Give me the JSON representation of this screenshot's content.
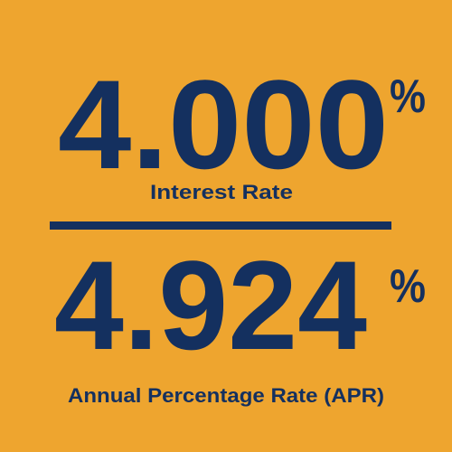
{
  "rates": [
    {
      "value": "4.000",
      "unit": "%",
      "label": "Interest Rate"
    },
    {
      "value": "4.924",
      "unit": "%",
      "label": "Annual Percentage Rate (APR)"
    }
  ]
}
